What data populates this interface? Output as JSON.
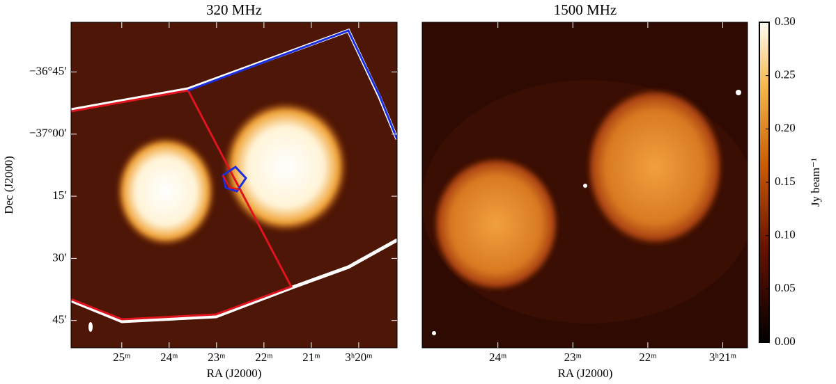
{
  "chart_data": [
    {
      "type": "image",
      "title": "320 MHz",
      "xlabel": "RA (J2000)",
      "ylabel": "Dec (J2000)",
      "xlim": [
        26.07,
        19.19
      ],
      "xticks": [
        {
          "value": 25,
          "label": "25ᵐ"
        },
        {
          "value": 24,
          "label": "24ᵐ"
        },
        {
          "value": 23,
          "label": "23ᵐ"
        },
        {
          "value": 22,
          "label": "22ᵐ"
        },
        {
          "value": 21,
          "label": "21ᵐ"
        },
        {
          "value": 20,
          "label": "3ʰ20ᵐ"
        }
      ],
      "ylim": [
        -37.86,
        -36.55
      ],
      "yticks": [
        {
          "value": -36.75,
          "label": "−36°45′"
        },
        {
          "value": -37.0,
          "label": "−37°00′"
        },
        {
          "value": -37.25,
          "label": "15′"
        },
        {
          "value": -37.5,
          "label": "30′"
        },
        {
          "value": -37.75,
          "label": "45′"
        }
      ]
    },
    {
      "type": "image",
      "title": "1500 MHz",
      "xlabel": "RA (J2000)",
      "xlim": [
        25.01,
        20.67
      ],
      "xticks": [
        {
          "value": 24,
          "label": "24ᵐ"
        },
        {
          "value": 23,
          "label": "23ᵐ"
        },
        {
          "value": 22,
          "label": "22ᵐ"
        },
        {
          "value": 21,
          "label": "3ʰ21ᵐ"
        }
      ]
    },
    {
      "type": "colorbar",
      "ylabel": "Jy beam⁻¹",
      "ylim": [
        0,
        0.3
      ],
      "yticks": [
        {
          "value": 0,
          "label": "0.00"
        },
        {
          "value": 0.05,
          "label": "0.05"
        },
        {
          "value": 0.1,
          "label": "0.10"
        },
        {
          "value": 0.15,
          "label": "0.15"
        },
        {
          "value": 0.2,
          "label": "0.20"
        },
        {
          "value": 0.25,
          "label": "0.25"
        },
        {
          "value": 0.3,
          "label": "0.30"
        }
      ]
    }
  ]
}
